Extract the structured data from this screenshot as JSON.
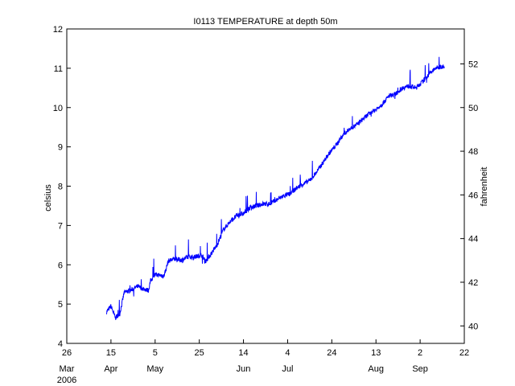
{
  "chart_data": {
    "type": "line",
    "title": "I0113 TEMPERATURE at depth 50m",
    "ylabel": "celsius",
    "ylabel_right": "fahrenheit",
    "xlim": [
      "2006-03-26",
      "2006-09-22"
    ],
    "ylim": [
      4,
      12
    ],
    "ylim_right_fahrenheit": [
      39.2,
      53.6
    ],
    "grid": false,
    "x_ticks": [
      {
        "date": "2006-03-26",
        "day": "26",
        "month": "Mar",
        "year": "2006"
      },
      {
        "date": "2006-04-15",
        "day": "15",
        "month": "Apr"
      },
      {
        "date": "2006-05-05",
        "day": "5",
        "month": "May"
      },
      {
        "date": "2006-05-25",
        "day": "25"
      },
      {
        "date": "2006-06-14",
        "day": "14",
        "month": "Jun"
      },
      {
        "date": "2006-07-04",
        "day": "4",
        "month": "Jul"
      },
      {
        "date": "2006-07-24",
        "day": "24"
      },
      {
        "date": "2006-08-13",
        "day": "13",
        "month": "Aug"
      },
      {
        "date": "2006-09-02",
        "day": "2",
        "month": "Sep"
      },
      {
        "date": "2006-09-22",
        "day": "22"
      }
    ],
    "y_ticks": [
      "4",
      "5",
      "6",
      "7",
      "8",
      "9",
      "10",
      "11",
      "12"
    ],
    "y_ticks_right": [
      "40",
      "42",
      "44",
      "46",
      "48",
      "50",
      "52"
    ],
    "series": [
      {
        "color": "#0000ff",
        "points": [
          [
            "2006-04-13",
            4.8
          ],
          [
            "2006-04-15",
            4.95
          ],
          [
            "2006-04-17",
            4.65
          ],
          [
            "2006-04-19",
            4.75
          ],
          [
            "2006-04-21",
            5.3
          ],
          [
            "2006-04-24",
            5.35
          ],
          [
            "2006-04-27",
            5.45
          ],
          [
            "2006-04-29",
            5.4
          ],
          [
            "2006-05-02",
            5.35
          ],
          [
            "2006-05-03",
            5.6
          ],
          [
            "2006-05-05",
            5.75
          ],
          [
            "2006-05-09",
            5.72
          ],
          [
            "2006-05-11",
            6.1
          ],
          [
            "2006-05-14",
            6.15
          ],
          [
            "2006-05-17",
            6.12
          ],
          [
            "2006-05-20",
            6.2
          ],
          [
            "2006-05-23",
            6.2
          ],
          [
            "2006-05-26",
            6.25
          ],
          [
            "2006-05-28",
            6.1
          ],
          [
            "2006-05-30",
            6.25
          ],
          [
            "2006-06-02",
            6.5
          ],
          [
            "2006-06-05",
            6.9
          ],
          [
            "2006-06-08",
            7.1
          ],
          [
            "2006-06-11",
            7.25
          ],
          [
            "2006-06-14",
            7.3
          ],
          [
            "2006-06-17",
            7.45
          ],
          [
            "2006-06-20",
            7.5
          ],
          [
            "2006-06-23",
            7.55
          ],
          [
            "2006-06-26",
            7.55
          ],
          [
            "2006-06-29",
            7.65
          ],
          [
            "2006-07-02",
            7.75
          ],
          [
            "2006-07-05",
            7.8
          ],
          [
            "2006-07-08",
            7.95
          ],
          [
            "2006-07-11",
            8.05
          ],
          [
            "2006-07-14",
            8.15
          ],
          [
            "2006-07-17",
            8.35
          ],
          [
            "2006-07-20",
            8.6
          ],
          [
            "2006-07-23",
            8.85
          ],
          [
            "2006-07-26",
            9.05
          ],
          [
            "2006-07-29",
            9.3
          ],
          [
            "2006-08-01",
            9.45
          ],
          [
            "2006-08-04",
            9.55
          ],
          [
            "2006-08-07",
            9.7
          ],
          [
            "2006-08-10",
            9.85
          ],
          [
            "2006-08-13",
            9.95
          ],
          [
            "2006-08-16",
            10.1
          ],
          [
            "2006-08-19",
            10.3
          ],
          [
            "2006-08-22",
            10.35
          ],
          [
            "2006-08-25",
            10.5
          ],
          [
            "2006-08-28",
            10.55
          ],
          [
            "2006-08-31",
            10.5
          ],
          [
            "2006-09-03",
            10.65
          ],
          [
            "2006-09-06",
            10.85
          ],
          [
            "2006-09-09",
            11.0
          ],
          [
            "2006-09-12",
            11.05
          ],
          [
            "2006-09-13",
            11.0
          ]
        ]
      }
    ]
  }
}
